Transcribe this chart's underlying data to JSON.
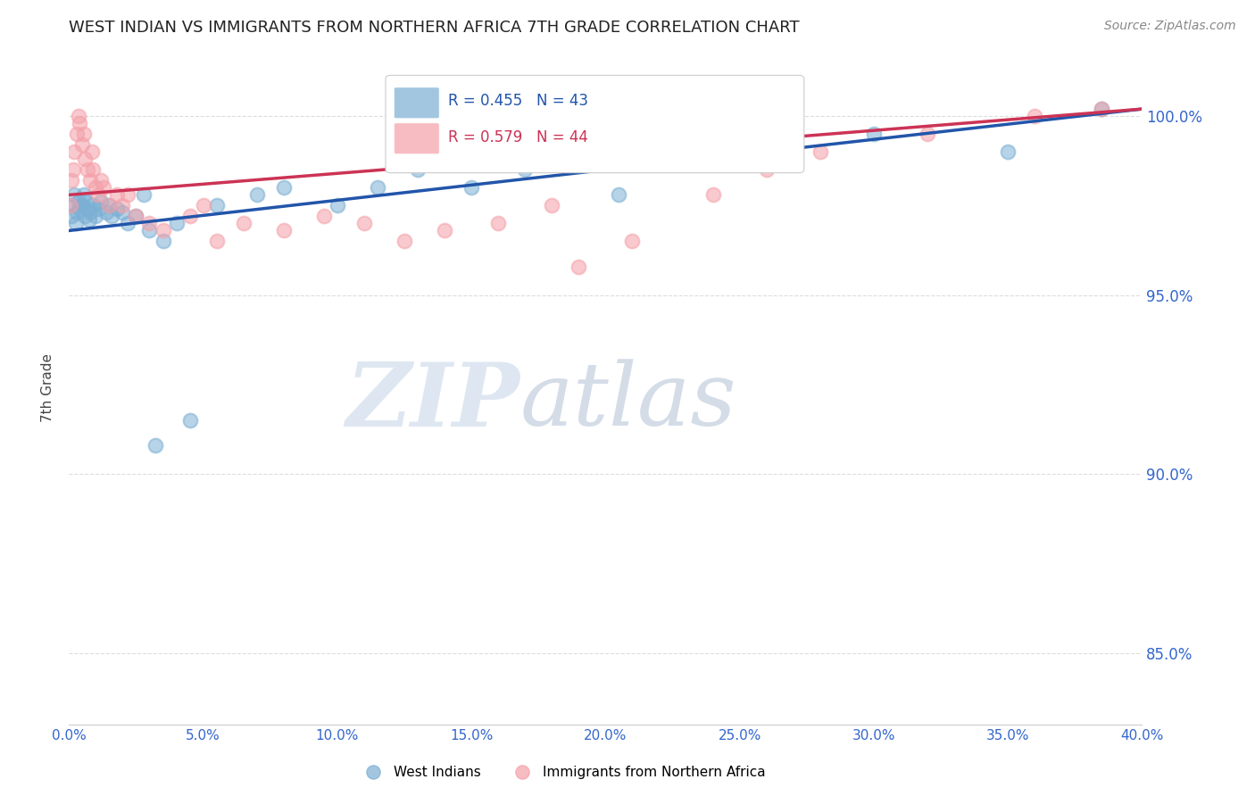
{
  "title": "WEST INDIAN VS IMMIGRANTS FROM NORTHERN AFRICA 7TH GRADE CORRELATION CHART",
  "source": "Source: ZipAtlas.com",
  "ylabel_left": "7th Grade",
  "x_tick_labels": [
    "0.0%",
    "5.0%",
    "10.0%",
    "15.0%",
    "20.0%",
    "25.0%",
    "30.0%",
    "35.0%",
    "40.0%"
  ],
  "x_tick_values": [
    0.0,
    5.0,
    10.0,
    15.0,
    20.0,
    25.0,
    30.0,
    35.0,
    40.0
  ],
  "y_tick_labels": [
    "85.0%",
    "90.0%",
    "95.0%",
    "100.0%"
  ],
  "y_tick_values": [
    85.0,
    90.0,
    95.0,
    100.0
  ],
  "xlim": [
    0.0,
    40.0
  ],
  "ylim": [
    83.0,
    101.8
  ],
  "blue_color": "#7BAFD4",
  "pink_color": "#F4A0A8",
  "blue_line_color": "#2255AA",
  "pink_line_color": "#CC3355",
  "legend_R_blue": "R = 0.455",
  "legend_N_blue": "N = 43",
  "legend_R_pink": "R = 0.579",
  "legend_N_pink": "N = 44",
  "blue_label": "West Indians",
  "pink_label": "Immigrants from Northern Africa",
  "watermark_zip": "ZIP",
  "watermark_atlas": "atlas",
  "title_color": "#222222",
  "axis_label_color": "#444444",
  "tick_label_color": "#3366CC",
  "grid_color": "#DDDDDD",
  "blue_scatter_x": [
    0.1,
    0.15,
    0.2,
    0.25,
    0.3,
    0.35,
    0.4,
    0.5,
    0.55,
    0.6,
    0.65,
    0.7,
    0.75,
    0.8,
    0.9,
    1.0,
    1.1,
    1.2,
    1.4,
    1.5,
    1.6,
    1.8,
    2.0,
    2.2,
    2.5,
    3.0,
    3.5,
    4.0,
    3.2,
    4.5,
    5.5,
    7.0,
    8.0,
    10.0,
    11.5,
    13.0,
    15.0,
    17.0,
    20.5,
    30.0,
    35.0,
    38.5,
    2.8
  ],
  "blue_scatter_y": [
    97.2,
    97.5,
    97.8,
    97.0,
    97.3,
    97.6,
    97.4,
    97.5,
    97.8,
    97.2,
    97.6,
    97.4,
    97.1,
    97.3,
    97.5,
    97.2,
    97.4,
    97.6,
    97.3,
    97.5,
    97.2,
    97.4,
    97.3,
    97.0,
    97.2,
    96.8,
    96.5,
    97.0,
    90.8,
    91.5,
    97.5,
    97.8,
    98.0,
    97.5,
    98.0,
    98.5,
    98.0,
    98.5,
    97.8,
    99.5,
    99.0,
    100.2,
    97.8
  ],
  "pink_scatter_x": [
    0.05,
    0.1,
    0.15,
    0.2,
    0.3,
    0.35,
    0.4,
    0.5,
    0.55,
    0.6,
    0.7,
    0.8,
    0.85,
    0.9,
    1.0,
    1.1,
    1.2,
    1.3,
    1.5,
    1.8,
    2.0,
    2.2,
    2.5,
    3.0,
    3.5,
    4.5,
    5.0,
    5.5,
    6.5,
    8.0,
    9.5,
    11.0,
    12.5,
    14.0,
    16.0,
    18.0,
    19.0,
    21.0,
    24.0,
    26.0,
    28.0,
    32.0,
    36.0,
    38.5
  ],
  "pink_scatter_y": [
    97.5,
    98.2,
    98.5,
    99.0,
    99.5,
    100.0,
    99.8,
    99.2,
    99.5,
    98.8,
    98.5,
    98.2,
    99.0,
    98.5,
    98.0,
    97.8,
    98.2,
    98.0,
    97.5,
    97.8,
    97.5,
    97.8,
    97.2,
    97.0,
    96.8,
    97.2,
    97.5,
    96.5,
    97.0,
    96.8,
    97.2,
    97.0,
    96.5,
    96.8,
    97.0,
    97.5,
    95.8,
    96.5,
    97.8,
    98.5,
    99.0,
    99.5,
    100.0,
    100.2
  ],
  "blue_line_x0": 0.0,
  "blue_line_y0": 96.8,
  "blue_line_x1": 40.0,
  "blue_line_y1": 100.2,
  "pink_line_x0": 0.0,
  "pink_line_y0": 97.8,
  "pink_line_x1": 40.0,
  "pink_line_y1": 100.2
}
